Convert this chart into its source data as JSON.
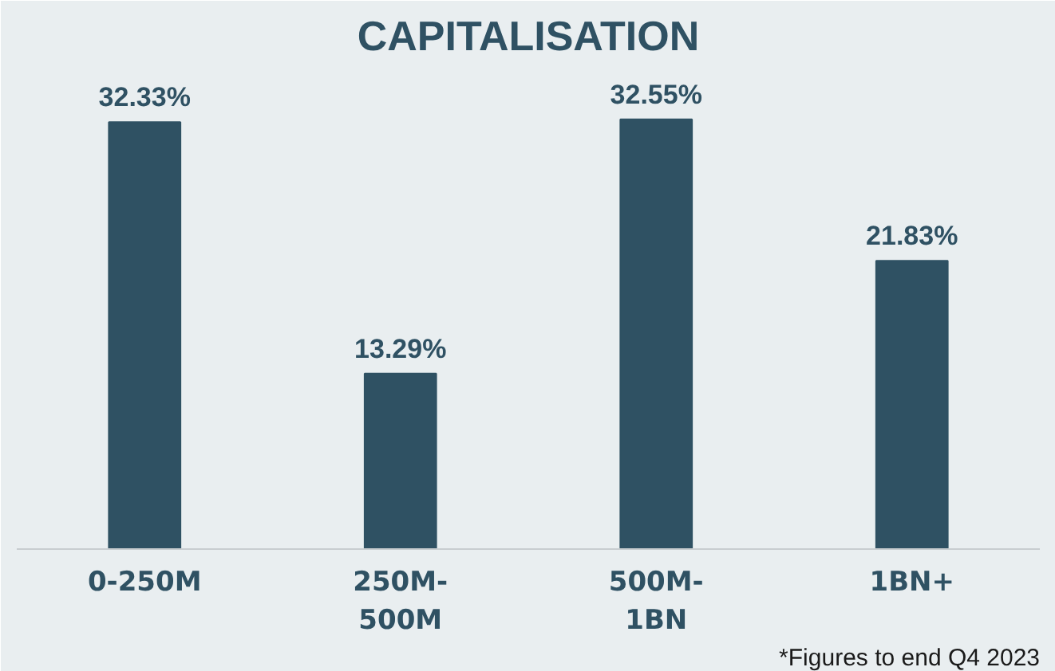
{
  "chart_data": {
    "type": "bar",
    "title": "CAPITALISATION",
    "categories": [
      "0-250M",
      "250M-500M",
      "500M-1BN",
      "1BN+"
    ],
    "values": [
      32.33,
      13.29,
      32.55,
      21.83
    ],
    "value_labels": [
      "32.33%",
      "13.29%",
      "32.55%",
      "21.83%"
    ],
    "color": "#2f5163",
    "annotations": [
      "*Figures to end Q4 2023"
    ]
  }
}
